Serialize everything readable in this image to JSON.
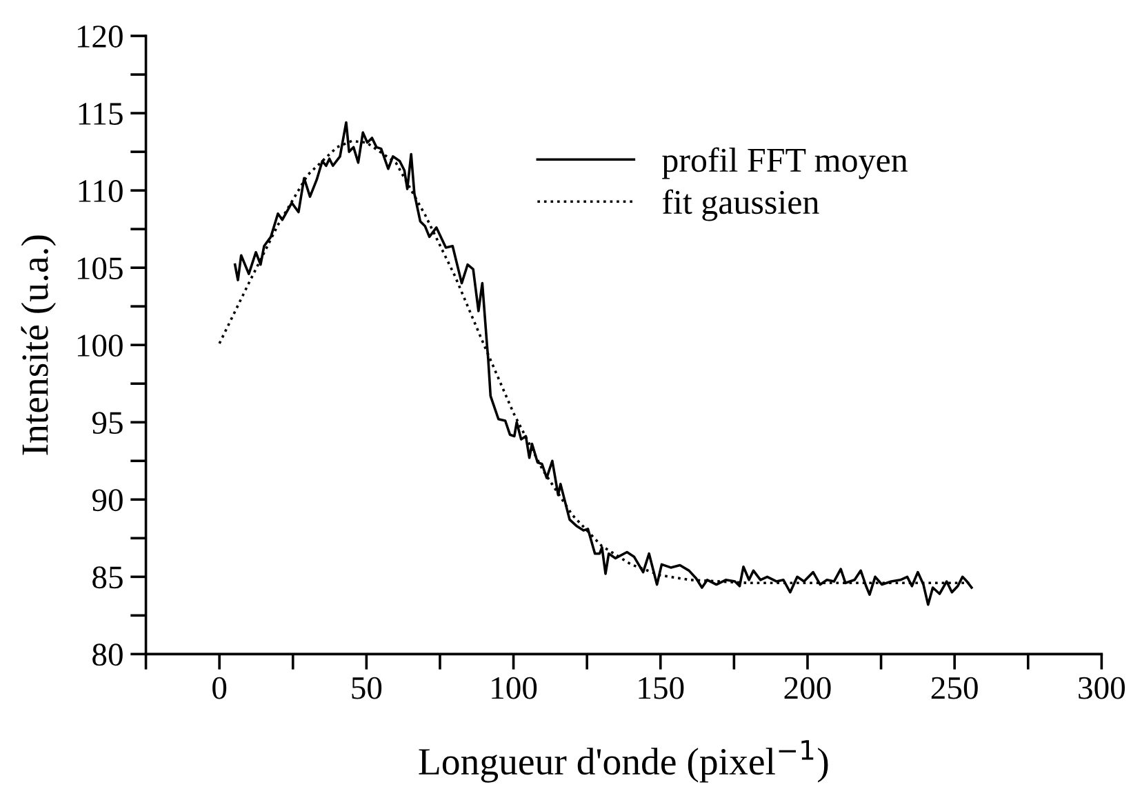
{
  "chart_data": {
    "type": "line",
    "xlabel": "Longueur d'onde (pixel$^{−1}$)",
    "ylabel": "Intensité (u.a.)",
    "xlim": [
      -25,
      300
    ],
    "ylim": [
      80,
      120
    ],
    "xticks": [
      {
        "value": -25,
        "label": null
      },
      0,
      {
        "value": 25,
        "label": null
      },
      50,
      {
        "value": 75,
        "label": null
      },
      100,
      {
        "value": 125,
        "label": null
      },
      150,
      {
        "value": 175,
        "label": null
      },
      200,
      {
        "value": 225,
        "label": null
      },
      250,
      {
        "value": 275,
        "label": null
      },
      300
    ],
    "yticks": [
      80,
      {
        "value": 82.5,
        "label": null
      },
      85,
      {
        "value": 87.5,
        "label": null
      },
      90,
      {
        "value": 92.5,
        "label": null
      },
      95,
      {
        "value": 97.5,
        "label": null
      },
      100,
      {
        "value": 102.5,
        "label": null
      },
      105,
      {
        "value": 107.5,
        "label": null
      },
      110,
      {
        "value": 112.5,
        "label": null
      },
      115,
      {
        "value": 117.5,
        "label": null
      },
      120
    ],
    "legend": "top right",
    "grid": false,
    "marker": "none",
    "series": [
      {
        "name": "profil FFT moyen",
        "color": "#000000",
        "line_style": "solid",
        "x": [
          5.3,
          6.3,
          7.4,
          10,
          12.4,
          14,
          15.2,
          17.5,
          19.9,
          21.4,
          24.6,
          26.9,
          28.8,
          30.8,
          33.1,
          35,
          36.3,
          37.4,
          38.6,
          41,
          43.1,
          44.1,
          45.6,
          47.2,
          48.8,
          50.3,
          51.9,
          53.4,
          55,
          57.4,
          59,
          61.3,
          62.9,
          63.9,
          65.2,
          66.3,
          68.3,
          69.9,
          71.4,
          73.8,
          77,
          79.3,
          82.4,
          84.4,
          86.3,
          88.1,
          89.4,
          91,
          91.4,
          92.2,
          94.9,
          97.2,
          98.8,
          100.3,
          101.1,
          102.6,
          104.2,
          105.4,
          106.3,
          108.2,
          109.7,
          111.3,
          113.2,
          115.2,
          116,
          119.1,
          121.4,
          123.8,
          125.3,
          127.7,
          129.3,
          130.1,
          131.3,
          132.4,
          134.7,
          138.6,
          141,
          144.1,
          146.1,
          148.8,
          150.4,
          153.5,
          156.6,
          159.7,
          162.1,
          164.1,
          165.9,
          169,
          172.2,
          175.3,
          176.9,
          178.2,
          180.1,
          181.6,
          184,
          186.3,
          189.5,
          191.8,
          194.1,
          196.5,
          198.8,
          201.9,
          204.3,
          206.6,
          209,
          211.3,
          212.9,
          216,
          218.1,
          219.9,
          221.1,
          223,
          225.3,
          228.5,
          231.6,
          233.9,
          235.5,
          237.5,
          239.4,
          241,
          242.6,
          244.9,
          247.3,
          249.1,
          251.1,
          252.7,
          254.2,
          255.8
        ],
        "values": [
          105.2,
          104.2,
          105.8,
          104.6,
          106.0,
          105.2,
          106.4,
          107.0,
          108.5,
          108.1,
          109.2,
          108.6,
          110.8,
          109.6,
          110.7,
          111.9,
          111.6,
          112.05,
          111.6,
          112.2,
          114.4,
          112.5,
          112.8,
          111.8,
          113.75,
          113.1,
          113.4,
          112.8,
          112.7,
          111.4,
          112.2,
          111.9,
          111.3,
          110.1,
          112.35,
          109.8,
          108.0,
          107.7,
          107.0,
          107.6,
          106.3,
          106.4,
          104.0,
          105.2,
          104.9,
          102.2,
          104.0,
          100.0,
          99.1,
          96.7,
          95.2,
          95.1,
          94.2,
          94.1,
          95.0,
          93.9,
          94.1,
          92.7,
          93.6,
          92.4,
          92.3,
          91.4,
          92.5,
          90.3,
          91.0,
          88.7,
          88.3,
          88.0,
          88.1,
          86.5,
          86.5,
          86.9,
          85.2,
          86.5,
          86.2,
          86.6,
          86.3,
          85.3,
          86.5,
          84.5,
          85.8,
          85.6,
          85.75,
          85.4,
          84.9,
          84.3,
          84.8,
          84.5,
          84.8,
          84.7,
          84.4,
          85.65,
          84.8,
          85.4,
          84.8,
          85.0,
          84.7,
          84.8,
          84.0,
          85.0,
          84.7,
          85.3,
          84.5,
          84.8,
          84.7,
          85.5,
          84.6,
          84.8,
          85.4,
          84.4,
          83.85,
          85.0,
          84.5,
          84.7,
          84.8,
          85.0,
          84.4,
          85.3,
          84.5,
          83.2,
          84.3,
          83.9,
          84.7,
          84.0,
          84.4,
          85.0,
          84.7,
          84.3
        ]
      },
      {
        "name": "fit gaussien",
        "color": "#000000",
        "line_style": "dotted",
        "x": [
          0,
          10,
          20,
          30,
          40,
          45,
          50,
          60,
          70,
          80,
          90,
          100,
          110,
          120,
          130,
          140,
          150,
          160,
          180,
          200,
          255
        ],
        "values": [
          100.1,
          104.0,
          107.8,
          111.0,
          112.8,
          113.2,
          113.1,
          111.8,
          108.4,
          104.5,
          100.0,
          95.6,
          91.9,
          89.0,
          87.0,
          85.8,
          85.1,
          84.8,
          84.6,
          84.6,
          84.6
        ]
      }
    ]
  }
}
